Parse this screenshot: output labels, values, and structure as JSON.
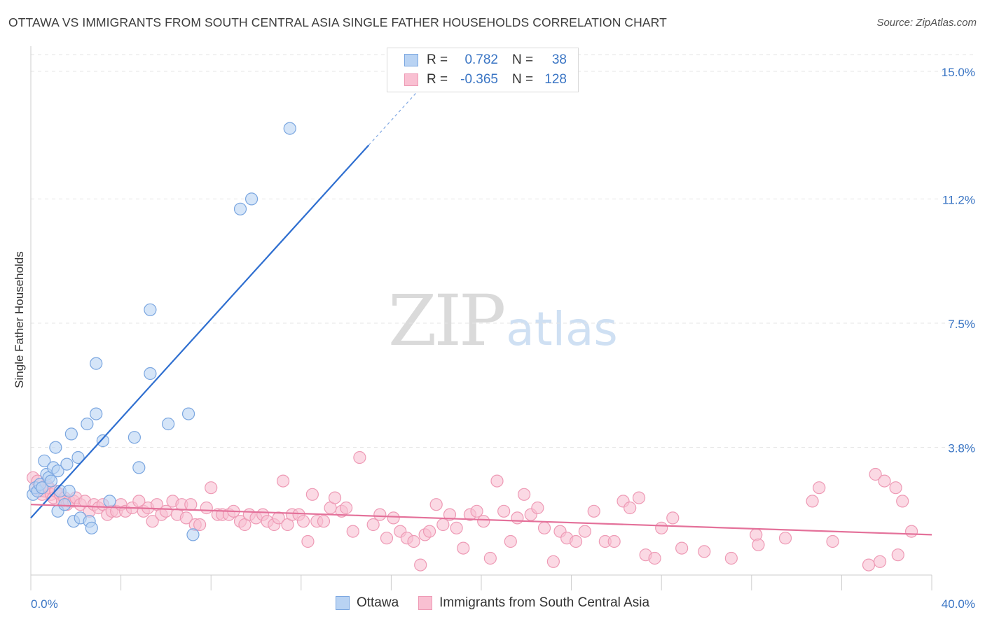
{
  "title": "OTTAWA VS IMMIGRANTS FROM SOUTH CENTRAL ASIA SINGLE FATHER HOUSEHOLDS CORRELATION CHART",
  "source": "Source: ZipAtlas.com",
  "watermark": {
    "zip": "ZIP",
    "atlas": "atlas"
  },
  "colors": {
    "ottawa_fill": "#b9d3f3",
    "ottawa_stroke": "#7aa6e0",
    "ottawa_line": "#2f6fd0",
    "immig_fill": "#f9c0d2",
    "immig_stroke": "#ee9ab5",
    "immig_line": "#e4719a",
    "tick_text": "#3a75c4",
    "grid": "#e4e4e4"
  },
  "legend": {
    "r_label": "R =",
    "n_label": "N =",
    "rows": [
      {
        "series": "ottawa",
        "r": "0.782",
        "n": "38"
      },
      {
        "series": "immig",
        "r": "-0.365",
        "n": "128"
      }
    ]
  },
  "bottom_legend": {
    "ottawa": "Ottawa",
    "immig": "Immigrants from South Central Asia"
  },
  "chart_data": {
    "type": "scatter",
    "title": "OTTAWA VS IMMIGRANTS FROM SOUTH CENTRAL ASIA SINGLE FATHER HOUSEHOLDS CORRELATION CHART",
    "xlabel": "",
    "ylabel": "Single Father Households",
    "x_tick_labels": [
      "0.0%",
      "40.0%"
    ],
    "y_tick_labels": [
      "3.8%",
      "7.5%",
      "11.2%",
      "15.0%"
    ],
    "y_ticks": [
      3.8,
      7.5,
      11.2,
      15.0
    ],
    "xlim": [
      0,
      40
    ],
    "ylim": [
      0,
      15.5
    ],
    "grid": true,
    "legend_position": "top-center",
    "series": [
      {
        "name": "Ottawa",
        "r": 0.782,
        "n": 38,
        "trend": {
          "x": [
            0,
            15
          ],
          "y": [
            1.7,
            12.8
          ],
          "dashed_to": [
            17.3,
            14.5
          ]
        },
        "points": [
          [
            0.1,
            2.4
          ],
          [
            0.2,
            2.6
          ],
          [
            0.3,
            2.5
          ],
          [
            0.4,
            2.7
          ],
          [
            0.5,
            2.6
          ],
          [
            0.6,
            3.4
          ],
          [
            0.7,
            3.0
          ],
          [
            0.8,
            2.9
          ],
          [
            0.9,
            2.8
          ],
          [
            1.0,
            3.2
          ],
          [
            1.1,
            3.8
          ],
          [
            1.2,
            1.9
          ],
          [
            1.2,
            3.1
          ],
          [
            1.3,
            2.5
          ],
          [
            1.5,
            2.1
          ],
          [
            1.6,
            3.3
          ],
          [
            1.7,
            2.5
          ],
          [
            1.8,
            4.2
          ],
          [
            1.9,
            1.6
          ],
          [
            2.1,
            3.5
          ],
          [
            2.2,
            1.7
          ],
          [
            2.5,
            4.5
          ],
          [
            2.6,
            1.6
          ],
          [
            2.7,
            1.4
          ],
          [
            2.9,
            6.3
          ],
          [
            2.9,
            4.8
          ],
          [
            3.2,
            4.0
          ],
          [
            3.5,
            2.2
          ],
          [
            4.6,
            4.1
          ],
          [
            4.8,
            3.2
          ],
          [
            5.3,
            7.9
          ],
          [
            5.3,
            6.0
          ],
          [
            6.1,
            4.5
          ],
          [
            7.0,
            4.8
          ],
          [
            7.2,
            1.2
          ],
          [
            9.3,
            10.9
          ],
          [
            9.8,
            11.2
          ],
          [
            11.5,
            13.3
          ]
        ]
      },
      {
        "name": "Immigrants from South Central Asia",
        "r": -0.365,
        "n": 128,
        "trend": {
          "x": [
            0,
            40
          ],
          "y": [
            2.1,
            1.2
          ]
        },
        "points": [
          [
            0.1,
            2.9
          ],
          [
            0.2,
            2.6
          ],
          [
            0.3,
            2.8
          ],
          [
            0.4,
            2.5
          ],
          [
            0.5,
            2.4
          ],
          [
            0.6,
            2.5
          ],
          [
            0.7,
            2.7
          ],
          [
            0.8,
            2.6
          ],
          [
            0.9,
            2.4
          ],
          [
            1.0,
            2.3
          ],
          [
            1.1,
            2.5
          ],
          [
            1.3,
            2.4
          ],
          [
            1.4,
            2.2
          ],
          [
            1.5,
            2.3
          ],
          [
            1.6,
            2.1
          ],
          [
            1.7,
            2.2
          ],
          [
            1.9,
            2.2
          ],
          [
            2.0,
            2.3
          ],
          [
            2.2,
            2.1
          ],
          [
            2.4,
            2.2
          ],
          [
            2.6,
            1.9
          ],
          [
            2.8,
            2.1
          ],
          [
            3.0,
            2.0
          ],
          [
            3.2,
            2.1
          ],
          [
            3.4,
            1.8
          ],
          [
            3.6,
            1.9
          ],
          [
            3.8,
            1.9
          ],
          [
            4.0,
            2.1
          ],
          [
            4.2,
            1.9
          ],
          [
            4.5,
            2.0
          ],
          [
            4.8,
            2.2
          ],
          [
            5.0,
            1.9
          ],
          [
            5.2,
            2.0
          ],
          [
            5.4,
            1.6
          ],
          [
            5.6,
            2.1
          ],
          [
            5.8,
            1.8
          ],
          [
            6.0,
            1.9
          ],
          [
            6.3,
            2.2
          ],
          [
            6.5,
            1.8
          ],
          [
            6.7,
            2.1
          ],
          [
            6.9,
            1.7
          ],
          [
            7.1,
            2.1
          ],
          [
            7.3,
            1.5
          ],
          [
            7.5,
            1.5
          ],
          [
            7.8,
            2.0
          ],
          [
            8.0,
            2.6
          ],
          [
            8.3,
            1.8
          ],
          [
            8.5,
            1.8
          ],
          [
            8.8,
            1.8
          ],
          [
            9.0,
            1.9
          ],
          [
            9.3,
            1.6
          ],
          [
            9.5,
            1.5
          ],
          [
            9.7,
            1.8
          ],
          [
            10.0,
            1.7
          ],
          [
            10.3,
            1.8
          ],
          [
            10.5,
            1.6
          ],
          [
            10.8,
            1.5
          ],
          [
            11.0,
            1.7
          ],
          [
            11.2,
            2.8
          ],
          [
            11.4,
            1.5
          ],
          [
            11.6,
            1.8
          ],
          [
            11.9,
            1.8
          ],
          [
            12.1,
            1.6
          ],
          [
            12.3,
            1.0
          ],
          [
            12.5,
            2.4
          ],
          [
            12.7,
            1.6
          ],
          [
            13.0,
            1.6
          ],
          [
            13.3,
            2.0
          ],
          [
            13.5,
            2.3
          ],
          [
            13.8,
            1.9
          ],
          [
            14.0,
            2.0
          ],
          [
            14.3,
            1.3
          ],
          [
            14.6,
            3.5
          ],
          [
            15.2,
            1.5
          ],
          [
            15.5,
            1.8
          ],
          [
            15.8,
            1.1
          ],
          [
            16.1,
            1.7
          ],
          [
            16.4,
            1.3
          ],
          [
            16.7,
            1.1
          ],
          [
            17.0,
            1.0
          ],
          [
            17.3,
            0.3
          ],
          [
            17.5,
            1.2
          ],
          [
            17.7,
            1.3
          ],
          [
            18.0,
            2.1
          ],
          [
            18.3,
            1.5
          ],
          [
            18.6,
            1.8
          ],
          [
            18.9,
            1.4
          ],
          [
            19.2,
            0.8
          ],
          [
            19.5,
            1.8
          ],
          [
            19.8,
            1.9
          ],
          [
            20.1,
            1.6
          ],
          [
            20.4,
            0.5
          ],
          [
            20.7,
            2.8
          ],
          [
            21.0,
            1.9
          ],
          [
            21.3,
            1.0
          ],
          [
            21.6,
            1.7
          ],
          [
            21.9,
            2.4
          ],
          [
            22.2,
            1.8
          ],
          [
            22.5,
            2.0
          ],
          [
            22.8,
            1.4
          ],
          [
            23.2,
            0.4
          ],
          [
            23.5,
            1.3
          ],
          [
            23.8,
            1.1
          ],
          [
            24.2,
            1.0
          ],
          [
            24.6,
            1.3
          ],
          [
            25.0,
            1.9
          ],
          [
            25.5,
            1.0
          ],
          [
            25.9,
            1.0
          ],
          [
            26.3,
            2.2
          ],
          [
            26.6,
            2.0
          ],
          [
            27.0,
            2.3
          ],
          [
            27.3,
            0.6
          ],
          [
            27.7,
            0.5
          ],
          [
            28.0,
            1.4
          ],
          [
            28.5,
            1.7
          ],
          [
            28.9,
            0.8
          ],
          [
            29.9,
            0.7
          ],
          [
            31.1,
            0.5
          ],
          [
            32.2,
            1.2
          ],
          [
            32.3,
            0.9
          ],
          [
            33.5,
            1.1
          ],
          [
            34.7,
            2.2
          ],
          [
            35.0,
            2.6
          ],
          [
            35.6,
            1.0
          ],
          [
            37.2,
            0.3
          ],
          [
            37.5,
            3.0
          ],
          [
            37.7,
            0.4
          ],
          [
            37.9,
            2.8
          ],
          [
            38.4,
            2.6
          ],
          [
            38.5,
            0.6
          ],
          [
            38.7,
            2.2
          ],
          [
            39.1,
            1.3
          ]
        ]
      }
    ]
  }
}
